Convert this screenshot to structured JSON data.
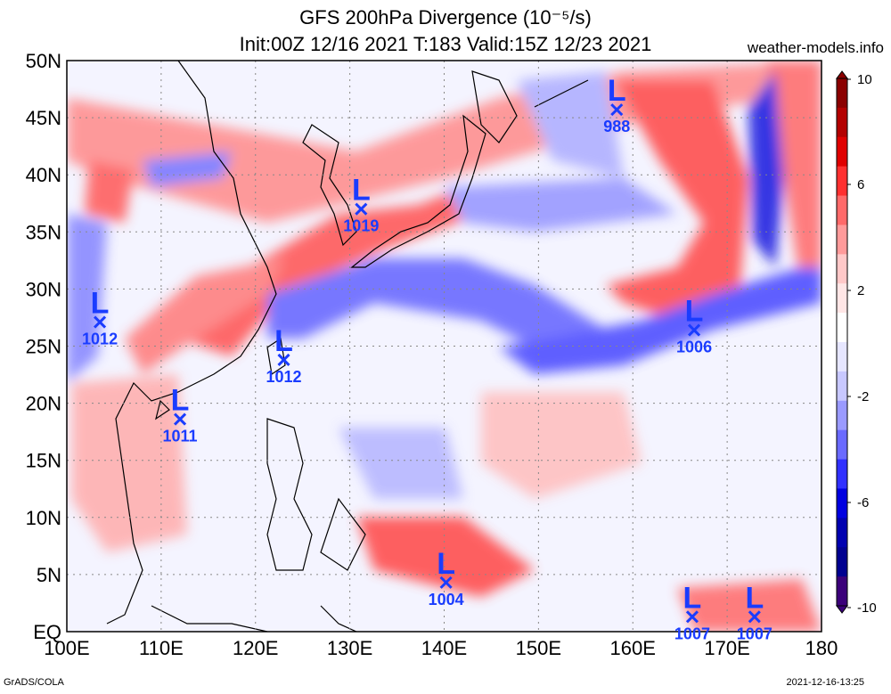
{
  "header": {
    "title": "GFS 200hPa Divergence (10⁻⁵/s)",
    "subtitle": "Init:00Z 12/16 2021 T:183 Valid:15Z 12/23 2021",
    "site": "weather-models.info"
  },
  "footer": {
    "left": "GrADS/COLA",
    "right": "2021-12-16-13:25"
  },
  "map": {
    "lon_range": [
      100,
      180
    ],
    "lat_range": [
      0,
      50
    ],
    "x_ticks": [
      "100E",
      "110E",
      "120E",
      "130E",
      "140E",
      "150E",
      "160E",
      "170E",
      "180"
    ],
    "y_ticks": [
      "EQ",
      "5N",
      "10N",
      "15N",
      "20N",
      "25N",
      "30N",
      "35N",
      "40N",
      "45N",
      "50N"
    ]
  },
  "colorbar": {
    "labels": [
      "10",
      "6",
      "2",
      "-2",
      "-6",
      "-10"
    ],
    "colors": [
      "#8b0000",
      "#b30000",
      "#e00000",
      "#ff3030",
      "#ff6a6a",
      "#ff9a9a",
      "#ffc8c8",
      "#ffe6e6",
      "#ffffff",
      "#e6e6ff",
      "#c8c8ff",
      "#9a9aff",
      "#6a6aff",
      "#3030ff",
      "#0000e0",
      "#0000b0",
      "#000090",
      "#3b007a"
    ]
  },
  "lows": [
    {
      "label": "L",
      "pressure": "988",
      "lon": 158.3,
      "lat": 45.7
    },
    {
      "label": "L",
      "pressure": "1019",
      "lon": 131.2,
      "lat": 37.0
    },
    {
      "label": "L",
      "pressure": "1012",
      "lon": 103.5,
      "lat": 27.1
    },
    {
      "label": "L",
      "pressure": "1012",
      "lon": 123.0,
      "lat": 23.8
    },
    {
      "label": "L",
      "pressure": "1006",
      "lon": 166.5,
      "lat": 26.4
    },
    {
      "label": "L",
      "pressure": "1011",
      "lon": 112.0,
      "lat": 18.6
    },
    {
      "label": "L",
      "pressure": "1004",
      "lon": 140.2,
      "lat": 4.3
    },
    {
      "label": "L",
      "pressure": "1007",
      "lon": 166.3,
      "lat": 1.3
    },
    {
      "label": "L",
      "pressure": "1007",
      "lon": 172.9,
      "lat": 1.3
    }
  ]
}
